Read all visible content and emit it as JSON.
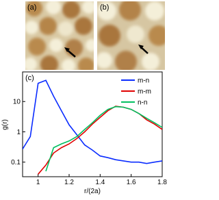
{
  "images": [
    {
      "label": "(a)"
    },
    {
      "label": "(b)"
    }
  ],
  "chart_data": {
    "type": "line",
    "panel_label": "(c)",
    "x_label": "r/(2a)",
    "y_label": "g(r)",
    "x": [
      0.9,
      0.95,
      1.0,
      1.05,
      1.1,
      1.15,
      1.2,
      1.25,
      1.3,
      1.35,
      1.4,
      1.45,
      1.5,
      1.55,
      1.6,
      1.65,
      1.7,
      1.75,
      1.8
    ],
    "series": [
      {
        "name": "m-n",
        "color": "#0a2cff",
        "values": [
          0.27,
          0.7,
          40,
          50,
          15,
          5,
          1.7,
          0.8,
          0.37,
          0.25,
          0.16,
          0.14,
          0.12,
          0.11,
          0.1,
          0.1,
          0.09,
          0.1,
          0.11
        ]
      },
      {
        "name": "m-m",
        "color": "#e00000",
        "values": [
          null,
          null,
          0.04,
          0.08,
          0.2,
          0.3,
          0.4,
          0.6,
          1,
          1.8,
          3,
          5,
          7,
          6.5,
          5.5,
          4,
          2.5,
          1.8,
          1.2
        ]
      },
      {
        "name": "n-n",
        "color": "#00c060",
        "values": [
          null,
          null,
          null,
          0.05,
          0.3,
          0.4,
          0.5,
          0.7,
          1.2,
          2,
          3.5,
          5.5,
          6.8,
          6.5,
          5.5,
          4,
          2.8,
          2,
          1.4
        ]
      }
    ],
    "xlim": [
      0.9,
      1.8
    ],
    "xticks": [
      1,
      1.2,
      1.4,
      1.6,
      1.8
    ],
    "ylim": [
      0.033,
      95
    ],
    "yticks": [
      0.1,
      1,
      10
    ],
    "log_y": true,
    "legend": "upper right"
  }
}
